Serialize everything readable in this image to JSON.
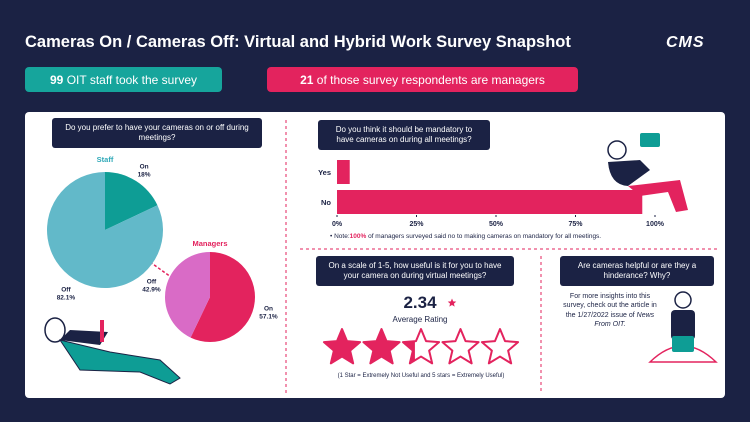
{
  "header": {
    "title": "Cameras On / Cameras Off: Virtual and Hybrid Work Survey Snapshot",
    "logo": "CMS"
  },
  "banners": [
    {
      "number": "99",
      "text": "OIT staff took the survey"
    },
    {
      "number": "21",
      "text": "of those survey respondents are managers"
    }
  ],
  "chart_data": [
    {
      "type": "pie",
      "title": "Do you prefer to have your cameras on or off during meetings?",
      "name": "Staff",
      "categories": [
        "On",
        "Off"
      ],
      "values": [
        18,
        82.1
      ],
      "value_labels": [
        "18%",
        "82.1%"
      ],
      "colors": [
        "#0e9d95",
        "#62b9c9"
      ],
      "name_color": "#2fa9b8"
    },
    {
      "type": "pie",
      "name": "Managers",
      "categories": [
        "On",
        "Off"
      ],
      "values": [
        57.1,
        42.9
      ],
      "value_labels": [
        "57.1%",
        "42.9%"
      ],
      "colors": [
        "#e3235e",
        "#d96bc6"
      ],
      "name_color": "#e3235e"
    },
    {
      "type": "hbar",
      "title": "Do you think it should be mandatory to have cameras on during all meetings?",
      "categories": [
        "Yes",
        "No"
      ],
      "values": [
        4,
        96
      ],
      "color": "#e3235e",
      "xlim": [
        0,
        100
      ],
      "xticks": [
        {
          "value": 0,
          "label": "0%"
        },
        {
          "value": 25,
          "label": "25%"
        },
        {
          "value": 50,
          "label": "50%"
        },
        {
          "value": 75,
          "label": "75%"
        },
        {
          "value": 100,
          "label": "100%"
        }
      ],
      "note": {
        "prefix": "Note:",
        "highlight": "100%",
        "text": "of managers surveyed said no to making cameras on mandatory for all meetings."
      }
    },
    {
      "type": "rating",
      "title": "On a scale of 1-5, how useful is it for you to have your camera on during virtual meetings?",
      "value": 2.34,
      "label": "Average Rating",
      "xlim": [
        0,
        5
      ],
      "color": "#e3235e",
      "note": "(1 Star = Extremely Not Useful and 5 stars = Extremely Useful)"
    }
  ],
  "sidebar": {
    "question": "Are cameras helpful or are they a hinderance? Why?",
    "text": "For more insights into this survey, check out the article in the 1/27/2022 issue of",
    "link": "News From OIT."
  }
}
